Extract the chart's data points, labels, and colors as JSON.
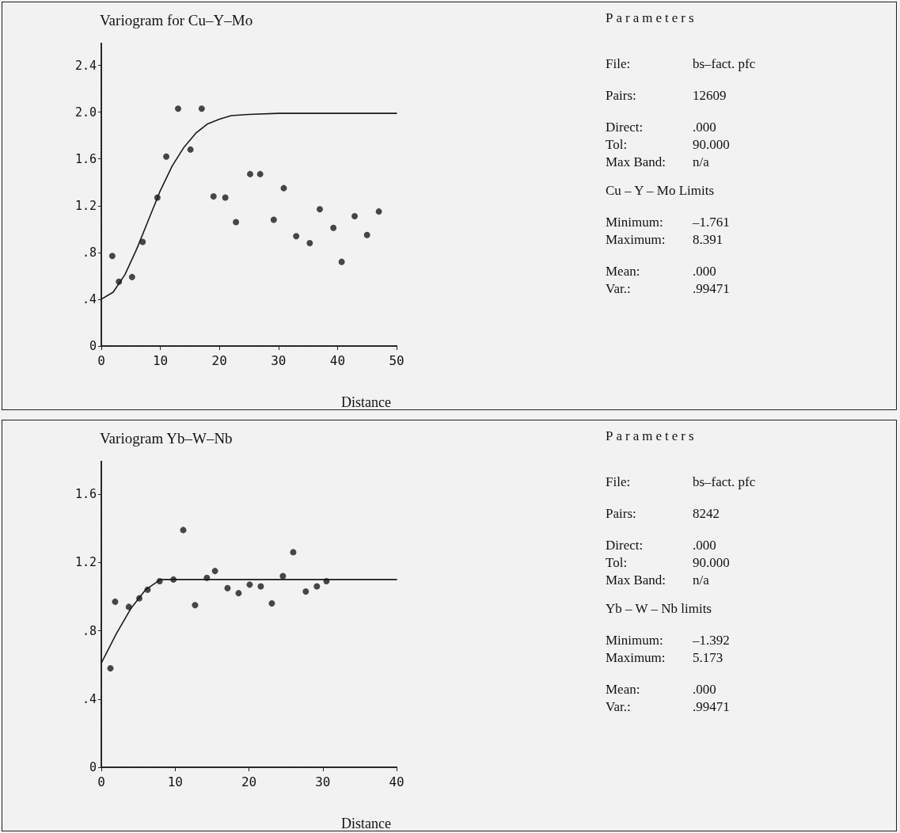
{
  "chart_data": [
    {
      "type": "scatter",
      "title": "Variogram for Cu–Y–Mo",
      "xlabel": "Distance",
      "xlim": [
        0,
        50
      ],
      "xticks": [
        0,
        10,
        20,
        30,
        40,
        50
      ],
      "ylim": [
        0,
        2.6
      ],
      "yticks": [
        0,
        {
          "value": 0.4,
          "label": ".4"
        },
        {
          "value": 0.8,
          "label": ".8"
        },
        1.2,
        1.6,
        {
          "value": 2,
          "label": "2.0"
        },
        2.4
      ],
      "series": [
        {
          "type": "scatter",
          "color": "#1a1a1a",
          "marker": "circle",
          "x": [
            1.86,
            2.98,
            5.2,
            7.0,
            9.5,
            11.0,
            13.0,
            15.1,
            17.0,
            19.0,
            21.0,
            22.8,
            25.2,
            26.9,
            29.2,
            30.9,
            33.0,
            35.3,
            37.0,
            39.3,
            40.7,
            42.9,
            45.0,
            47.0
          ],
          "values": [
            0.77,
            0.55,
            0.59,
            0.89,
            1.27,
            1.62,
            2.03,
            1.68,
            2.03,
            1.28,
            1.27,
            1.06,
            1.47,
            1.47,
            1.08,
            1.35,
            0.94,
            0.88,
            1.17,
            1.01,
            0.72,
            1.11,
            0.95,
            1.15
          ]
        },
        {
          "type": "line",
          "color": "#1a1a1a",
          "marker": "none",
          "line_style": "solid",
          "x": [
            0,
            2,
            4,
            6,
            8,
            10,
            12,
            14,
            16,
            18,
            20,
            22,
            25,
            30,
            50
          ],
          "values": [
            0.4,
            0.46,
            0.61,
            0.83,
            1.08,
            1.33,
            1.54,
            1.7,
            1.82,
            1.9,
            1.94,
            1.97,
            1.98,
            1.99,
            1.99
          ]
        }
      ]
    },
    {
      "type": "other",
      "title": "Parameters",
      "annotations": [
        "File:",
        "bs–fact. pfc",
        "Pairs:",
        "12609",
        "Direct:",
        ".000",
        "Tol:",
        "90.000",
        "Max Band:",
        "n/a",
        "Cu – Y – Mo Limits",
        "Minimum:",
        "–1.761",
        "Maximum:",
        "8.391",
        "Mean:",
        ".000",
        "Var.:",
        ".99471"
      ]
    },
    {
      "type": "scatter",
      "title": "Variogram Yb–W–Nb",
      "xlabel": "Distance",
      "xlim": [
        0,
        40
      ],
      "xticks": [
        0,
        10,
        20,
        30,
        40
      ],
      "ylim": [
        0,
        1.8
      ],
      "yticks": [
        0,
        {
          "value": 0.4,
          "label": ".4"
        },
        {
          "value": 0.8,
          "label": ".8"
        },
        1.2,
        1.6
      ],
      "series": [
        {
          "type": "scatter",
          "color": "#1a1a1a",
          "marker": "circle",
          "x": [
            1.23,
            1.87,
            3.73,
            5.15,
            6.27,
            7.9,
            9.78,
            11.1,
            12.7,
            14.3,
            15.4,
            17.1,
            18.6,
            20.1,
            21.6,
            23.1,
            24.6,
            26.0,
            27.7,
            29.2,
            30.5
          ],
          "values": [
            0.58,
            0.97,
            0.94,
            0.99,
            1.04,
            1.09,
            1.1,
            1.39,
            0.95,
            1.11,
            1.15,
            1.05,
            1.02,
            1.07,
            1.06,
            0.96,
            1.12,
            1.26,
            1.03,
            1.06,
            1.09
          ]
        },
        {
          "type": "line",
          "color": "#1a1a1a",
          "marker": "none",
          "line_style": "solid",
          "x": [
            0,
            2,
            4,
            6,
            8,
            8.5,
            40
          ],
          "values": [
            0.61,
            0.78,
            0.93,
            1.04,
            1.1,
            1.1,
            1.1
          ]
        }
      ]
    },
    {
      "type": "other",
      "title": "Parameters",
      "annotations": [
        "File:",
        "bs–fact. pfc",
        "Pairs:",
        "8242",
        "Direct:",
        ".000",
        "Tol:",
        "90.000",
        "Max Band:",
        "n/a",
        "Yb – W – Nb limits",
        "Minimum:",
        "–1.392",
        "Maximum:",
        "5.173",
        "Mean:",
        ".000",
        "Var.:",
        ".99471"
      ]
    }
  ]
}
